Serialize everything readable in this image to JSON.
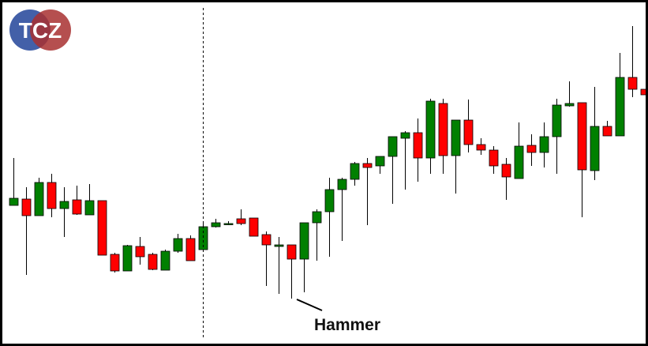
{
  "logo": "TCZ",
  "chart_data": {
    "type": "candlestick",
    "annotation": "Hammer",
    "up_color": "#008000",
    "down_color": "#ff0000",
    "ylim": [
      0,
      425
    ],
    "open": [
      170,
      178,
      157,
      199,
      166,
      177,
      158,
      176,
      108,
      87,
      118,
      108,
      88,
      112,
      128,
      114,
      143,
      147,
      153,
      154,
      133,
      118,
      120,
      102,
      148,
      162,
      190,
      203,
      223,
      220,
      232,
      255,
      262,
      230,
      299,
      233,
      278,
      247,
      240,
      222,
      204,
      246,
      237,
      257,
      296,
      300,
      214,
      270,
      258,
      332,
      317
    ],
    "high": [
      230,
      193,
      205,
      210,
      193,
      195,
      197,
      176,
      110,
      120,
      130,
      110,
      114,
      134,
      132,
      150,
      153,
      150,
      165,
      154,
      137,
      130,
      120,
      148,
      165,
      205,
      205,
      225,
      230,
      232,
      257,
      264,
      280,
      305,
      305,
      278,
      304,
      255,
      245,
      230,
      275,
      260,
      275,
      305,
      327,
      300,
      320,
      277,
      363,
      397,
      317
    ],
    "low": [
      170,
      82,
      157,
      155,
      130,
      158,
      158,
      107,
      85,
      87,
      95,
      88,
      88,
      110,
      100,
      114,
      142,
      145,
      145,
      131,
      68,
      58,
      52,
      60,
      100,
      105,
      125,
      195,
      145,
      210,
      172,
      190,
      200,
      210,
      210,
      185,
      237,
      234,
      210,
      177,
      204,
      220,
      218,
      210,
      295,
      155,
      202,
      258,
      258,
      307,
      310
    ],
    "close": [
      179,
      157,
      199,
      166,
      175,
      159,
      176,
      107,
      87,
      119,
      105,
      89,
      112,
      128,
      100,
      143,
      148,
      147,
      147,
      131,
      120,
      120,
      102,
      148,
      162,
      190,
      203,
      223,
      218,
      232,
      257,
      262,
      230,
      302,
      233,
      278,
      247,
      240,
      220,
      206,
      245,
      237,
      257,
      297,
      299,
      215,
      270,
      258,
      332,
      317,
      310
    ]
  }
}
